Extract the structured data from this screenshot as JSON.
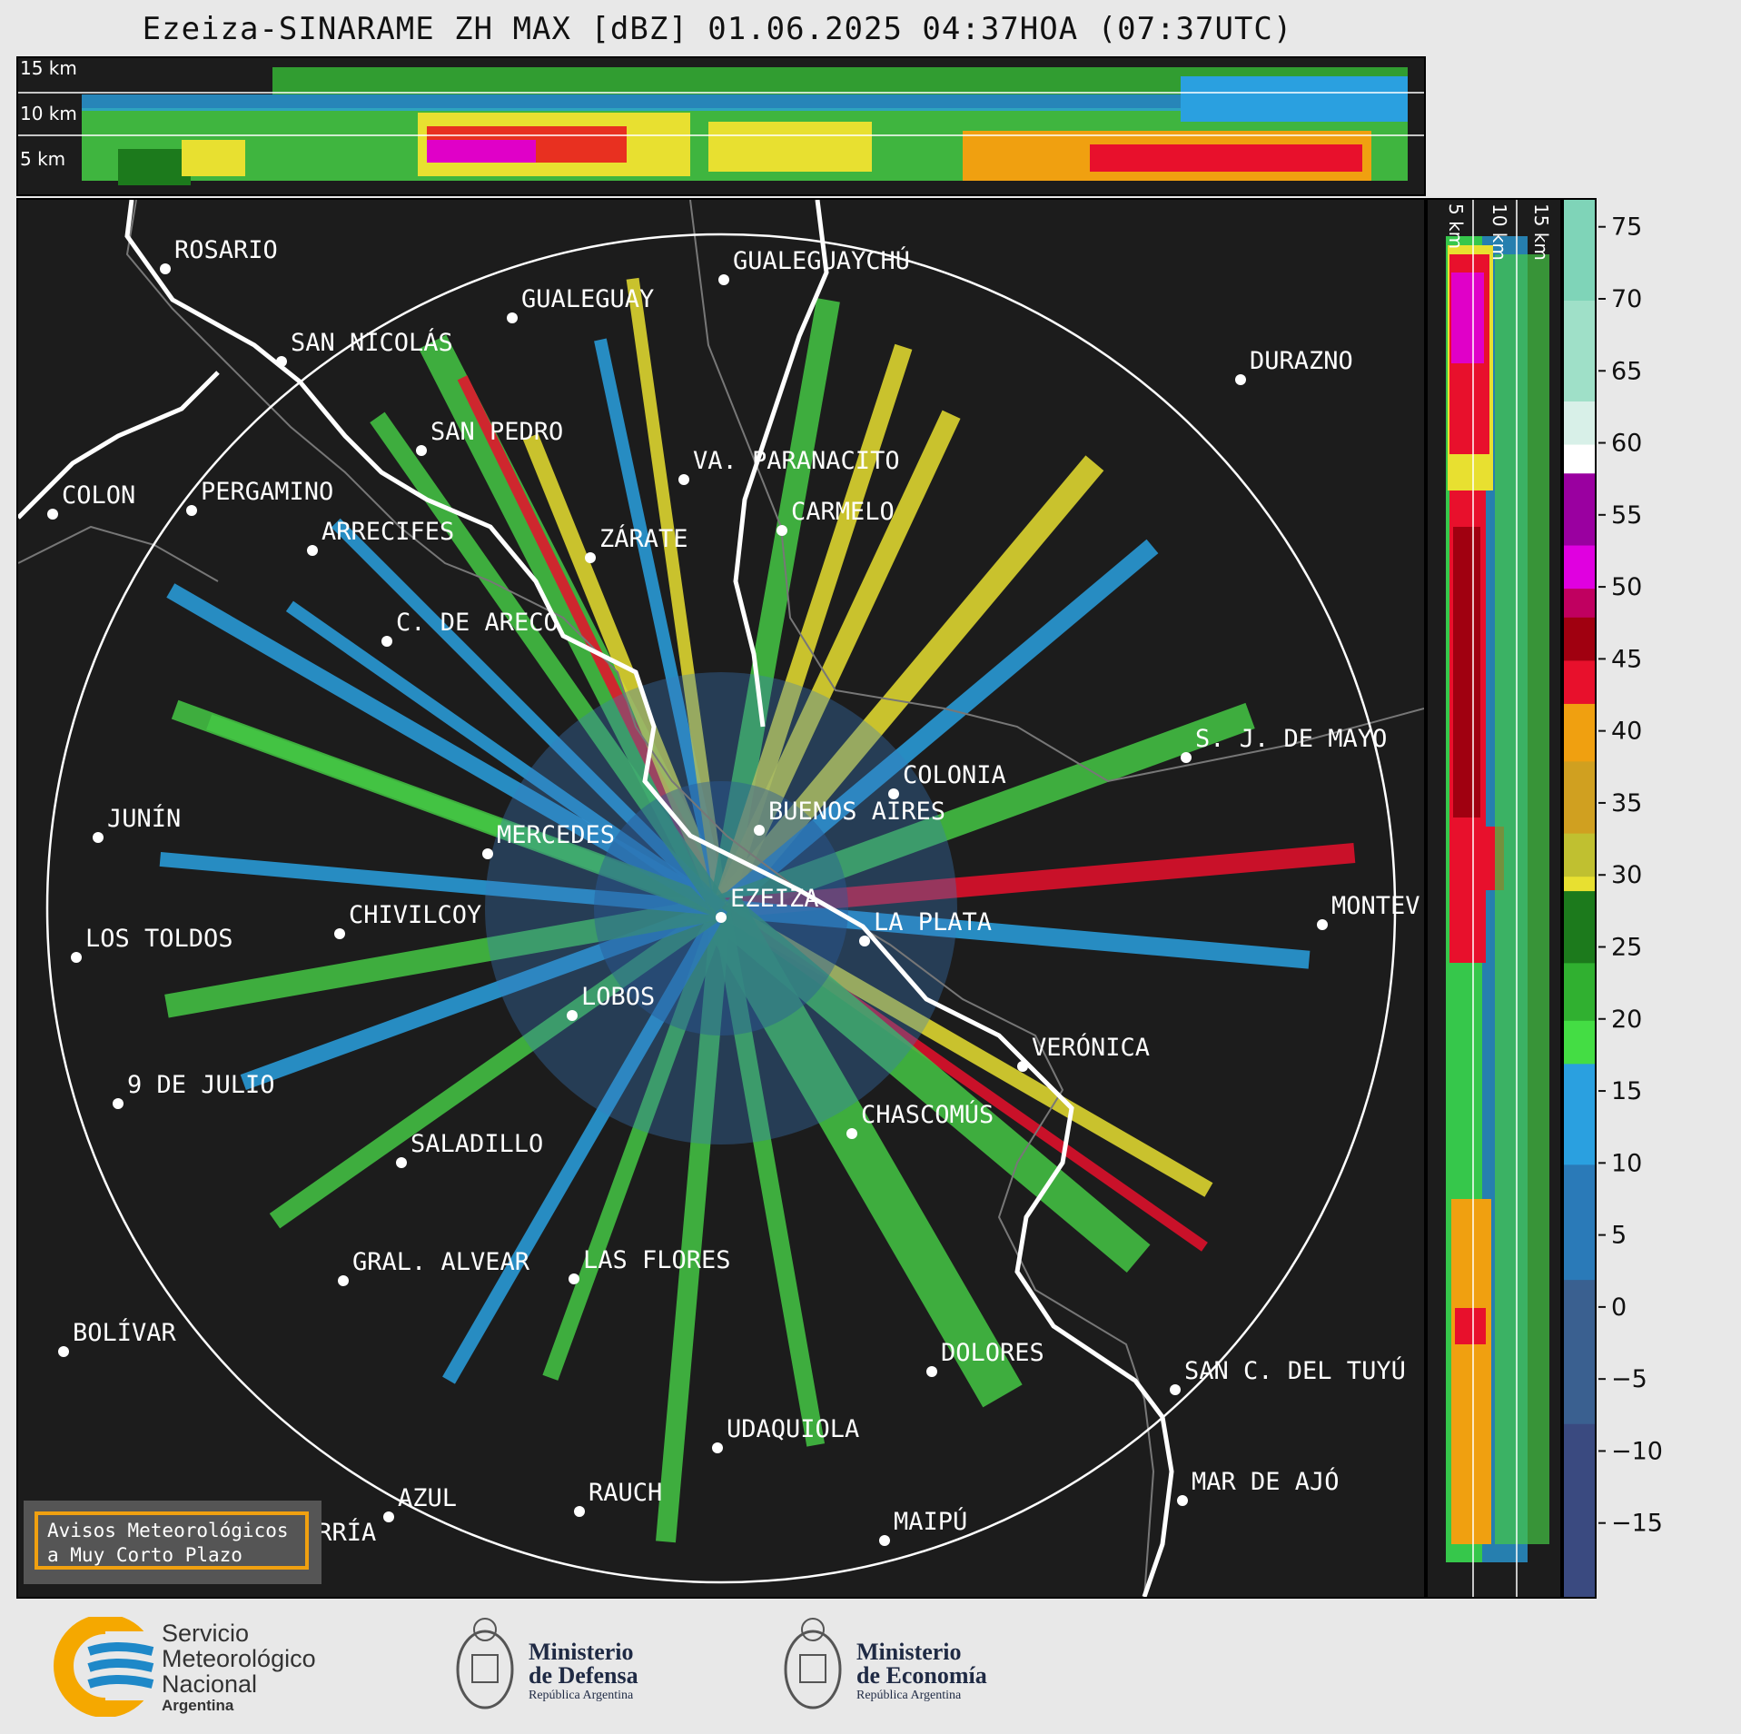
{
  "title": "Ezeiza-SINARAME ZH MAX [dBZ] 01.06.2025 04:37HOA (07:37UTC)",
  "top_panel": {
    "km_labels": [
      "15 km",
      "10 km",
      "5 km"
    ]
  },
  "side_panel": {
    "km_labels": [
      "5 km",
      "10 km",
      "15 km"
    ]
  },
  "colorbar": {
    "ticks": [
      "75",
      "70",
      "65",
      "60",
      "55",
      "50",
      "45",
      "40",
      "35",
      "30",
      "25",
      "20",
      "15",
      "10",
      "5",
      "0",
      "−5",
      "−10",
      "−15"
    ],
    "range_dbz": [
      -20,
      77
    ]
  },
  "cities": [
    {
      "name": "ROSARIO"
    },
    {
      "name": "GUALEGUAYCHÚ"
    },
    {
      "name": "GUALEGUAY"
    },
    {
      "name": "SAN NICOLÁS"
    },
    {
      "name": "DURAZNO"
    },
    {
      "name": "SAN PEDRO"
    },
    {
      "name": "VA. PARANACITO"
    },
    {
      "name": "COLON"
    },
    {
      "name": "PERGAMINO"
    },
    {
      "name": "CARMELO"
    },
    {
      "name": "ARRECIFES"
    },
    {
      "name": "ZÁRATE"
    },
    {
      "name": "S. J. DE MAYO"
    },
    {
      "name": "C. DE ARECO"
    },
    {
      "name": "COLONIA"
    },
    {
      "name": "JUNÍN"
    },
    {
      "name": "BUENOS AIRES"
    },
    {
      "name": "MERCEDES"
    },
    {
      "name": "EZEIZA"
    },
    {
      "name": "MONTEV"
    },
    {
      "name": "CHIVILCOY"
    },
    {
      "name": "LA PLATA"
    },
    {
      "name": "LOS TOLDOS"
    },
    {
      "name": "LOBOS"
    },
    {
      "name": "VERÓNICA"
    },
    {
      "name": "9 DE JULIO"
    },
    {
      "name": "CHASCOMÚS"
    },
    {
      "name": "SALADILLO"
    },
    {
      "name": "GRAL. ALVEAR"
    },
    {
      "name": "LAS FLORES"
    },
    {
      "name": "BOLÍVAR"
    },
    {
      "name": "DOLORES"
    },
    {
      "name": "SAN C. DEL TUYÚ"
    },
    {
      "name": "UDAQUIOLA"
    },
    {
      "name": "MAR DE AJÓ"
    },
    {
      "name": "AZUL"
    },
    {
      "name": "RAUCH"
    },
    {
      "name": "OLAVARRÍA"
    },
    {
      "name": "MAIPÚ"
    }
  ],
  "alert": {
    "line1": "Avisos Meteorológicos",
    "line2": "a Muy Corto Plazo"
  },
  "logos": {
    "smn": {
      "line1": "Servicio",
      "line2": "Meteorológico",
      "line3": "Nacional",
      "line4": "Argentina"
    },
    "defensa": {
      "line1": "Ministerio",
      "line2": "de Defensa",
      "line3": "República Argentina"
    },
    "economia": {
      "line1": "Ministerio",
      "line2": "de Economía",
      "line3": "República Argentina"
    }
  },
  "colors": {
    "panel_bg": "#1c1c1c",
    "accent": "#f0a010",
    "smn_blue": "#1e88c8",
    "smn_orange": "#f5a800"
  }
}
